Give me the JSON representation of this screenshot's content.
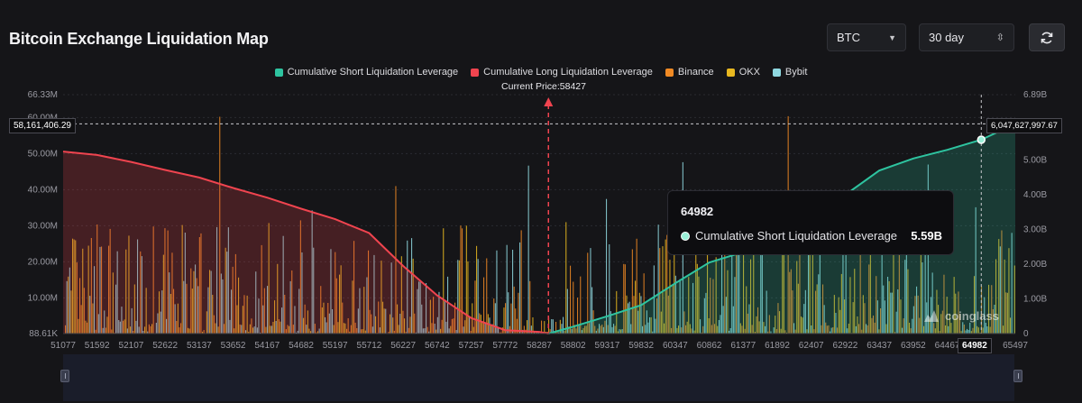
{
  "page": {
    "title": "Bitcoin Exchange Liquidation Map"
  },
  "controls": {
    "symbol": "BTC",
    "range": "30 day",
    "refresh_icon": "refresh-icon"
  },
  "colors": {
    "short": "#2ec4a0",
    "long": "#f0444f",
    "binance": "#f08a24",
    "okx": "#e8b820",
    "bybit": "#8fd8e0"
  },
  "legend": [
    {
      "label": "Cumulative Short Liquidation Leverage",
      "color": "#2ec4a0"
    },
    {
      "label": "Cumulative Long Liquidation Leverage",
      "color": "#f0444f"
    },
    {
      "label": "Binance",
      "color": "#f08a24"
    },
    {
      "label": "OKX",
      "color": "#e8b820"
    },
    {
      "label": "Bybit",
      "color": "#8fd8e0"
    }
  ],
  "current_price_label": "Current Price:58427",
  "crosshair": {
    "left_value": "58,161,406.29",
    "right_value": "6,047,627,997.67",
    "x_value": "64982"
  },
  "tooltip": {
    "title": "64982",
    "series": "Cumulative Short Liquidation Leverage",
    "value": "5.59B"
  },
  "watermark": "coinglass",
  "chart_data": {
    "type": "bar",
    "current_price": 58427,
    "x_range": [
      51077,
      65497
    ],
    "x_ticks": [
      51077,
      51592,
      52107,
      52622,
      53137,
      53652,
      54167,
      54682,
      55197,
      55712,
      56227,
      56742,
      57257,
      57772,
      58287,
      58802,
      59317,
      59832,
      60347,
      60862,
      61377,
      61892,
      62407,
      62922,
      63437,
      63952,
      64467,
      64982,
      65497
    ],
    "y_left": {
      "ticks": [
        "88.61K",
        "10.00M",
        "20.00M",
        "30.00M",
        "40.00M",
        "50.00M",
        "60.00M",
        "66.33M"
      ],
      "range": [
        88610,
        66330000
      ]
    },
    "y_right": {
      "ticks": [
        "0",
        "1.00B",
        "2.00B",
        "3.00B",
        "4.00B",
        "5.00B",
        "6.00B",
        "6.89B"
      ],
      "range": [
        0,
        6890000000
      ]
    },
    "series": [
      {
        "name": "Cumulative Long Liquidation Leverage",
        "axis": "right",
        "x": [
          51077,
          51592,
          52107,
          52622,
          53137,
          53652,
          54167,
          54682,
          55197,
          55712,
          56227,
          56742,
          57257,
          57772,
          58287,
          58427
        ],
        "values": [
          5250000000.0,
          5150000000.0,
          4950000000.0,
          4720000000.0,
          4500000000.0,
          4200000000.0,
          3920000000.0,
          3600000000.0,
          3300000000.0,
          2900000000.0,
          1950000000.0,
          1100000000.0,
          450000000.0,
          100000000.0,
          50000000.0,
          0.0
        ]
      },
      {
        "name": "Cumulative Short Liquidation Leverage",
        "axis": "right",
        "x": [
          58427,
          58802,
          59317,
          59832,
          60347,
          60862,
          61377,
          61892,
          62407,
          62922,
          63437,
          63952,
          64467,
          64982,
          65497
        ],
        "values": [
          0.0,
          200000000.0,
          500000000.0,
          820000000.0,
          1450000000.0,
          2050000000.0,
          2350000000.0,
          2600000000.0,
          3200000000.0,
          4000000000.0,
          4700000000.0,
          5050000000.0,
          5300000000.0,
          5590000000.0,
          6050000000.0
        ]
      }
    ],
    "bar_series": [
      "Binance",
      "OKX",
      "Bybit"
    ]
  }
}
